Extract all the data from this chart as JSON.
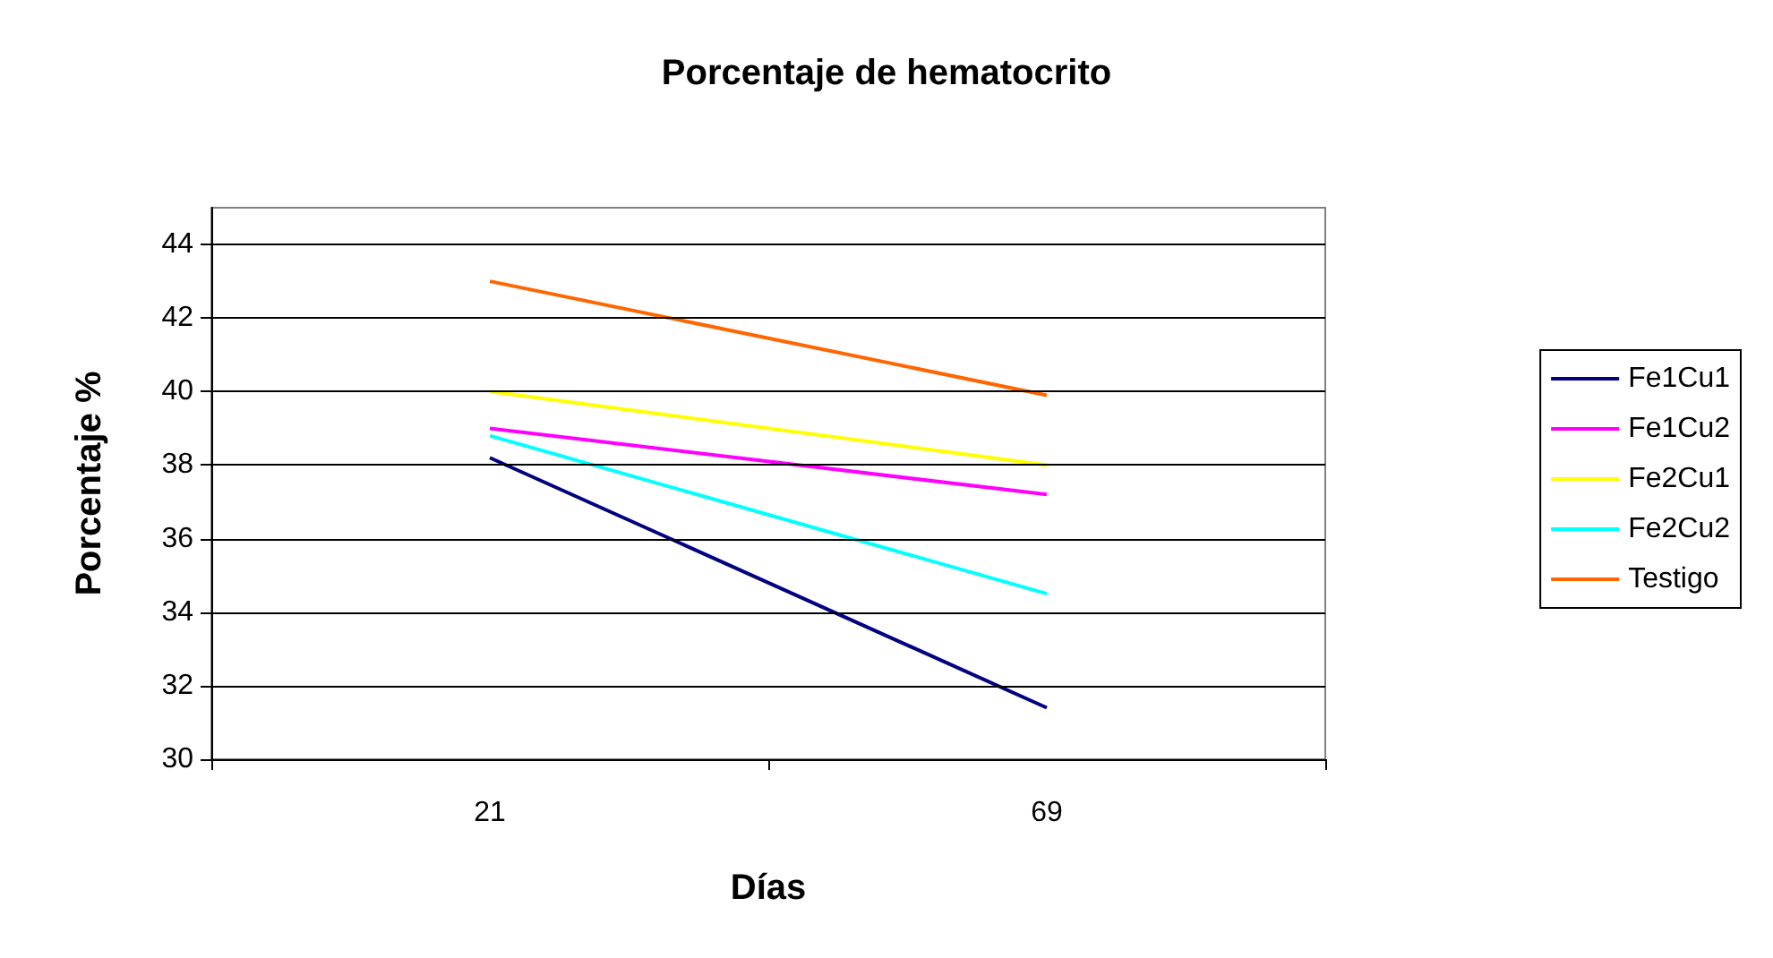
{
  "chart_data": {
    "type": "line",
    "title": "Porcentaje de hematocrito",
    "xlabel": "Días",
    "ylabel": "Porcentaje %",
    "categories": [
      "21",
      "69"
    ],
    "series": [
      {
        "name": "Fe1Cu1",
        "color": "#000080",
        "values": [
          38.2,
          31.4
        ]
      },
      {
        "name": "Fe1Cu2",
        "color": "#ff00ff",
        "values": [
          39.0,
          37.2
        ]
      },
      {
        "name": "Fe2Cu1",
        "color": "#ffff00",
        "values": [
          40.0,
          38.0
        ]
      },
      {
        "name": "Fe2Cu2",
        "color": "#00ffff",
        "values": [
          38.8,
          34.5
        ]
      },
      {
        "name": "Testigo",
        "color": "#ff6600",
        "values": [
          43.0,
          39.9
        ]
      }
    ],
    "ylim": [
      30,
      45
    ],
    "yticks": [
      30,
      32,
      34,
      36,
      38,
      40,
      42,
      44
    ],
    "grid": "y",
    "legend": "right",
    "marker": "none"
  }
}
